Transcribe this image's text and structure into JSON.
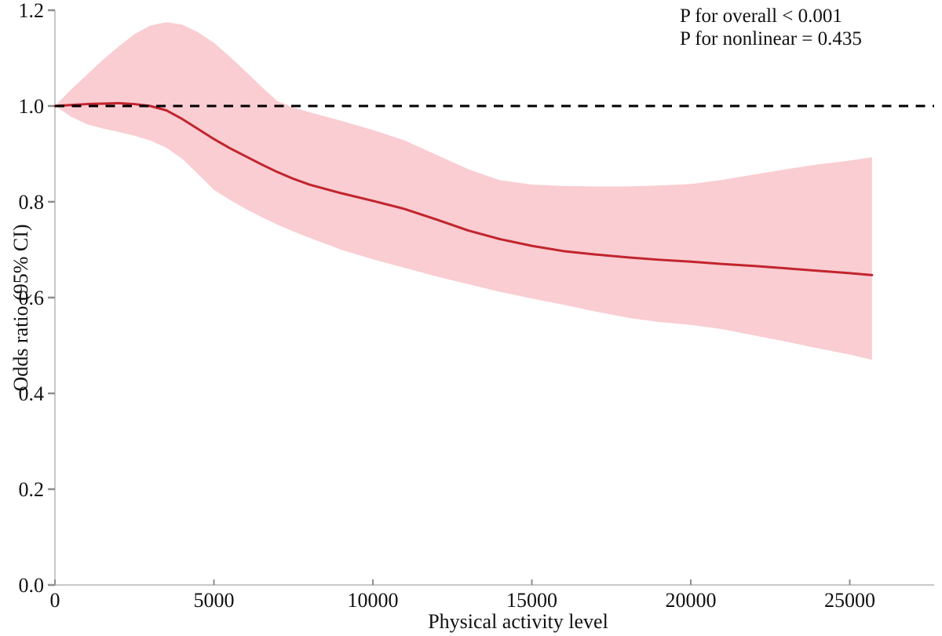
{
  "figure": {
    "xlabel": "Physical activity level",
    "ylabel": "Odds ratio (95% CI)",
    "annotations": [
      "P for overall < 0.001",
      "P for nonlinear = 0.435"
    ]
  },
  "chart_data": {
    "type": "line",
    "subtype": "restricted-cubic-spline-with-confidence-band",
    "title": "",
    "xlabel": "Physical activity level",
    "ylabel": "Odds ratio (95% CI)",
    "annotations": [
      "P for overall < 0.001",
      "P for nonlinear = 0.435"
    ],
    "p_for_overall": "< 0.001",
    "p_for_nonlinear": "0.435",
    "xlim": [
      0,
      27700
    ],
    "ylim": [
      0.0,
      1.2
    ],
    "x_ticks": [
      0,
      5000,
      10000,
      15000,
      20000,
      25000
    ],
    "y_ticks": [
      0.0,
      0.2,
      0.4,
      0.6,
      0.8,
      1.0,
      1.2
    ],
    "reference_line_y": 1.0,
    "grid": false,
    "legend": "none",
    "x": [
      0,
      500,
      1000,
      1500,
      2000,
      2500,
      3000,
      3500,
      4000,
      4500,
      5000,
      5500,
      6000,
      6500,
      7000,
      7500,
      8000,
      9000,
      10000,
      11000,
      12000,
      13000,
      14000,
      15000,
      16000,
      17000,
      18000,
      19000,
      20000,
      21000,
      22000,
      23000,
      24000,
      25000,
      25700
    ],
    "series": [
      {
        "name": "Odds ratio (fitted spline)",
        "values": [
          1.0,
          1.002,
          1.004,
          1.005,
          1.006,
          1.004,
          1.0,
          0.991,
          0.973,
          0.952,
          0.931,
          0.912,
          0.895,
          0.878,
          0.862,
          0.848,
          0.836,
          0.818,
          0.802,
          0.785,
          0.763,
          0.74,
          0.722,
          0.708,
          0.697,
          0.69,
          0.684,
          0.679,
          0.675,
          0.67,
          0.666,
          0.661,
          0.656,
          0.651,
          0.647
        ]
      },
      {
        "name": "95% CI lower bound",
        "values": [
          1.0,
          0.978,
          0.962,
          0.953,
          0.946,
          0.938,
          0.928,
          0.913,
          0.89,
          0.858,
          0.825,
          0.804,
          0.785,
          0.768,
          0.752,
          0.738,
          0.725,
          0.7,
          0.68,
          0.662,
          0.644,
          0.628,
          0.612,
          0.598,
          0.585,
          0.571,
          0.558,
          0.549,
          0.543,
          0.534,
          0.521,
          0.508,
          0.494,
          0.481,
          0.47
        ]
      },
      {
        "name": "95% CI upper bound",
        "values": [
          1.0,
          1.034,
          1.065,
          1.096,
          1.124,
          1.15,
          1.168,
          1.175,
          1.17,
          1.154,
          1.132,
          1.103,
          1.072,
          1.04,
          1.01,
          0.997,
          0.987,
          0.969,
          0.95,
          0.928,
          0.898,
          0.868,
          0.845,
          0.836,
          0.833,
          0.832,
          0.832,
          0.834,
          0.837,
          0.846,
          0.857,
          0.868,
          0.878,
          0.886,
          0.893
        ]
      }
    ],
    "colors": {
      "line": "#c2242e",
      "band": "#f9cdd2",
      "reference": "#000000",
      "axis": "#c9c9c9",
      "tick": "#8d8d8d",
      "text": "#111111"
    }
  }
}
